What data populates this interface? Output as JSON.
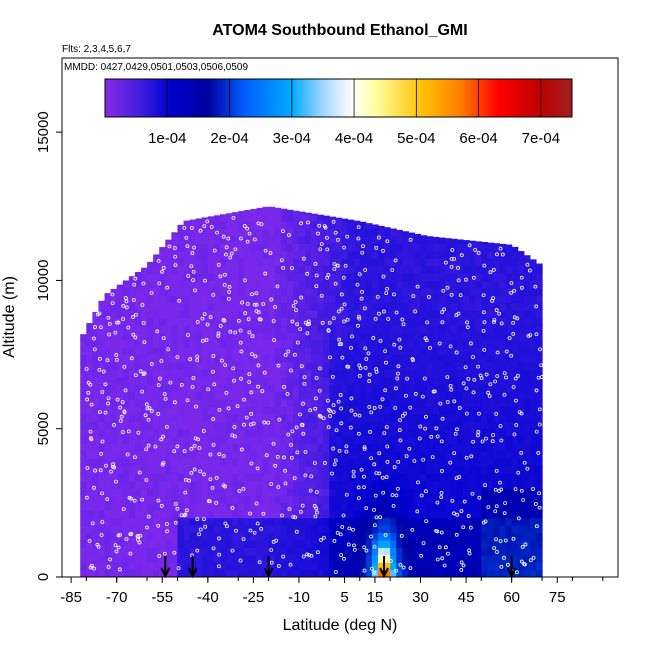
{
  "chart_data": {
    "type": "heatmap",
    "title": "ATOM4 Southbound Ethanol_GMI",
    "flights_label": "Flts: 2,3,4,5,6,7",
    "mmdd_label": "MMDD: 0427,0429,0501,0503,0506,0509",
    "xlabel": "Latitude (deg N)",
    "ylabel": "Altitude (m)",
    "xlim": [
      -88,
      95
    ],
    "ylim": [
      0,
      17500
    ],
    "x_ticks": [
      -85,
      -70,
      -55,
      -40,
      -25,
      -10,
      5,
      15,
      30,
      45,
      60,
      75
    ],
    "x_tick_labels": [
      "-85",
      "-70",
      "-55",
      "-40",
      "-25",
      "-10",
      "5",
      "15",
      "30",
      "45",
      "60",
      "75"
    ],
    "y_ticks": [
      0,
      5000,
      10000,
      15000
    ],
    "y_tick_labels": [
      "0",
      "5000",
      "10000",
      "15000"
    ],
    "colorbar": {
      "range": [
        0,
        0.00075
      ],
      "ticks": [
        0.0001,
        0.0002,
        0.0003,
        0.0004,
        0.0005,
        0.0006,
        0.0007
      ],
      "tick_labels": [
        "1e-04",
        "2e-04",
        "3e-04",
        "4e-04",
        "5e-04",
        "6e-04",
        "7e-04"
      ],
      "colors": [
        "#9b30ff",
        "#0000cd",
        "#00008b",
        "#1e90ff",
        "#00bfff",
        "#ffffff",
        "#ffff99",
        "#ffa500",
        "#ff0000",
        "#b22222"
      ]
    },
    "data_extent_top_m": [
      {
        "lat": -82,
        "alt": 8000
      },
      {
        "lat": -74,
        "alt": 9500
      },
      {
        "lat": -60,
        "alt": 10500
      },
      {
        "lat": -48,
        "alt": 12000
      },
      {
        "lat": -20,
        "alt": 12500
      },
      {
        "lat": 10,
        "alt": 12000
      },
      {
        "lat": 32,
        "alt": 11500
      },
      {
        "lat": 60,
        "alt": 11200
      },
      {
        "lat": 70,
        "alt": 10500
      }
    ],
    "profile_markers_lat": [
      -54,
      -45,
      -20,
      18,
      60
    ]
  }
}
